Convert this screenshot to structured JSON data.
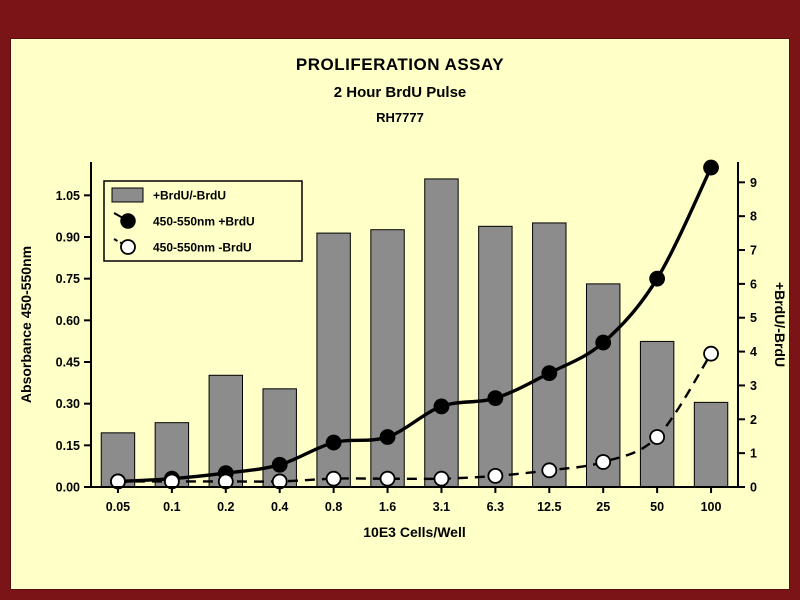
{
  "window": {
    "frame_color": "#7b1416",
    "panel_color": "#ffffc8"
  },
  "header": {
    "title": "PROLIFERATION ASSAY",
    "subtitle": "2 Hour BrdU Pulse",
    "cell_line": "RH7777"
  },
  "chart_data": {
    "type": "bar+line",
    "categories": [
      "0.05",
      "0.1",
      "0.2",
      "0.4",
      "0.8",
      "1.6",
      "3.1",
      "6.3",
      "12.5",
      "25",
      "50",
      "100"
    ],
    "xlabel": "10E3 Cells/Well",
    "left_axis": {
      "label": "Absorbance 450-550nm",
      "ticks": [
        0,
        0.15,
        0.3,
        0.45,
        0.6,
        0.75,
        0.9,
        1.05
      ],
      "tick_labels": [
        "0.00",
        "0.15",
        "0.30",
        "0.45",
        "0.60",
        "0.75",
        "0.90",
        "1.05"
      ],
      "max": 1.17
    },
    "right_axis": {
      "label": "+BrdU/-BrdU",
      "ticks": [
        0,
        1,
        2,
        3,
        4,
        5,
        6,
        7,
        8,
        9
      ],
      "tick_labels": [
        "0",
        "1",
        "2",
        "3",
        "4",
        "5",
        "6",
        "7",
        "8",
        "9"
      ],
      "max": 9.6
    },
    "series": [
      {
        "name": "+BrdU/-BrdU",
        "type": "bar",
        "axis": "right",
        "color": "#8c8c8c",
        "values": [
          1.6,
          1.9,
          3.3,
          2.9,
          7.5,
          7.6,
          9.1,
          7.7,
          7.8,
          6.0,
          4.3,
          2.5
        ]
      },
      {
        "name": "450-550nm +BrdU",
        "type": "line",
        "axis": "left",
        "line_style": "solid",
        "marker": "filled-circle",
        "color": "#000000",
        "values": [
          0.02,
          0.03,
          0.05,
          0.08,
          0.16,
          0.18,
          0.29,
          0.32,
          0.41,
          0.52,
          0.75,
          1.15
        ]
      },
      {
        "name": "450-550nm -BrdU",
        "type": "line",
        "axis": "left",
        "line_style": "dashed",
        "marker": "open-circle",
        "color": "#000000",
        "marker_fill": "#ffffff",
        "values": [
          0.02,
          0.02,
          0.02,
          0.02,
          0.03,
          0.03,
          0.03,
          0.04,
          0.06,
          0.09,
          0.18,
          0.48
        ]
      }
    ],
    "legend": {
      "position": "top-left",
      "entries": [
        "+BrdU/-BrdU",
        "450-550nm +BrdU",
        "450-550nm -BrdU"
      ]
    },
    "grid": false
  }
}
